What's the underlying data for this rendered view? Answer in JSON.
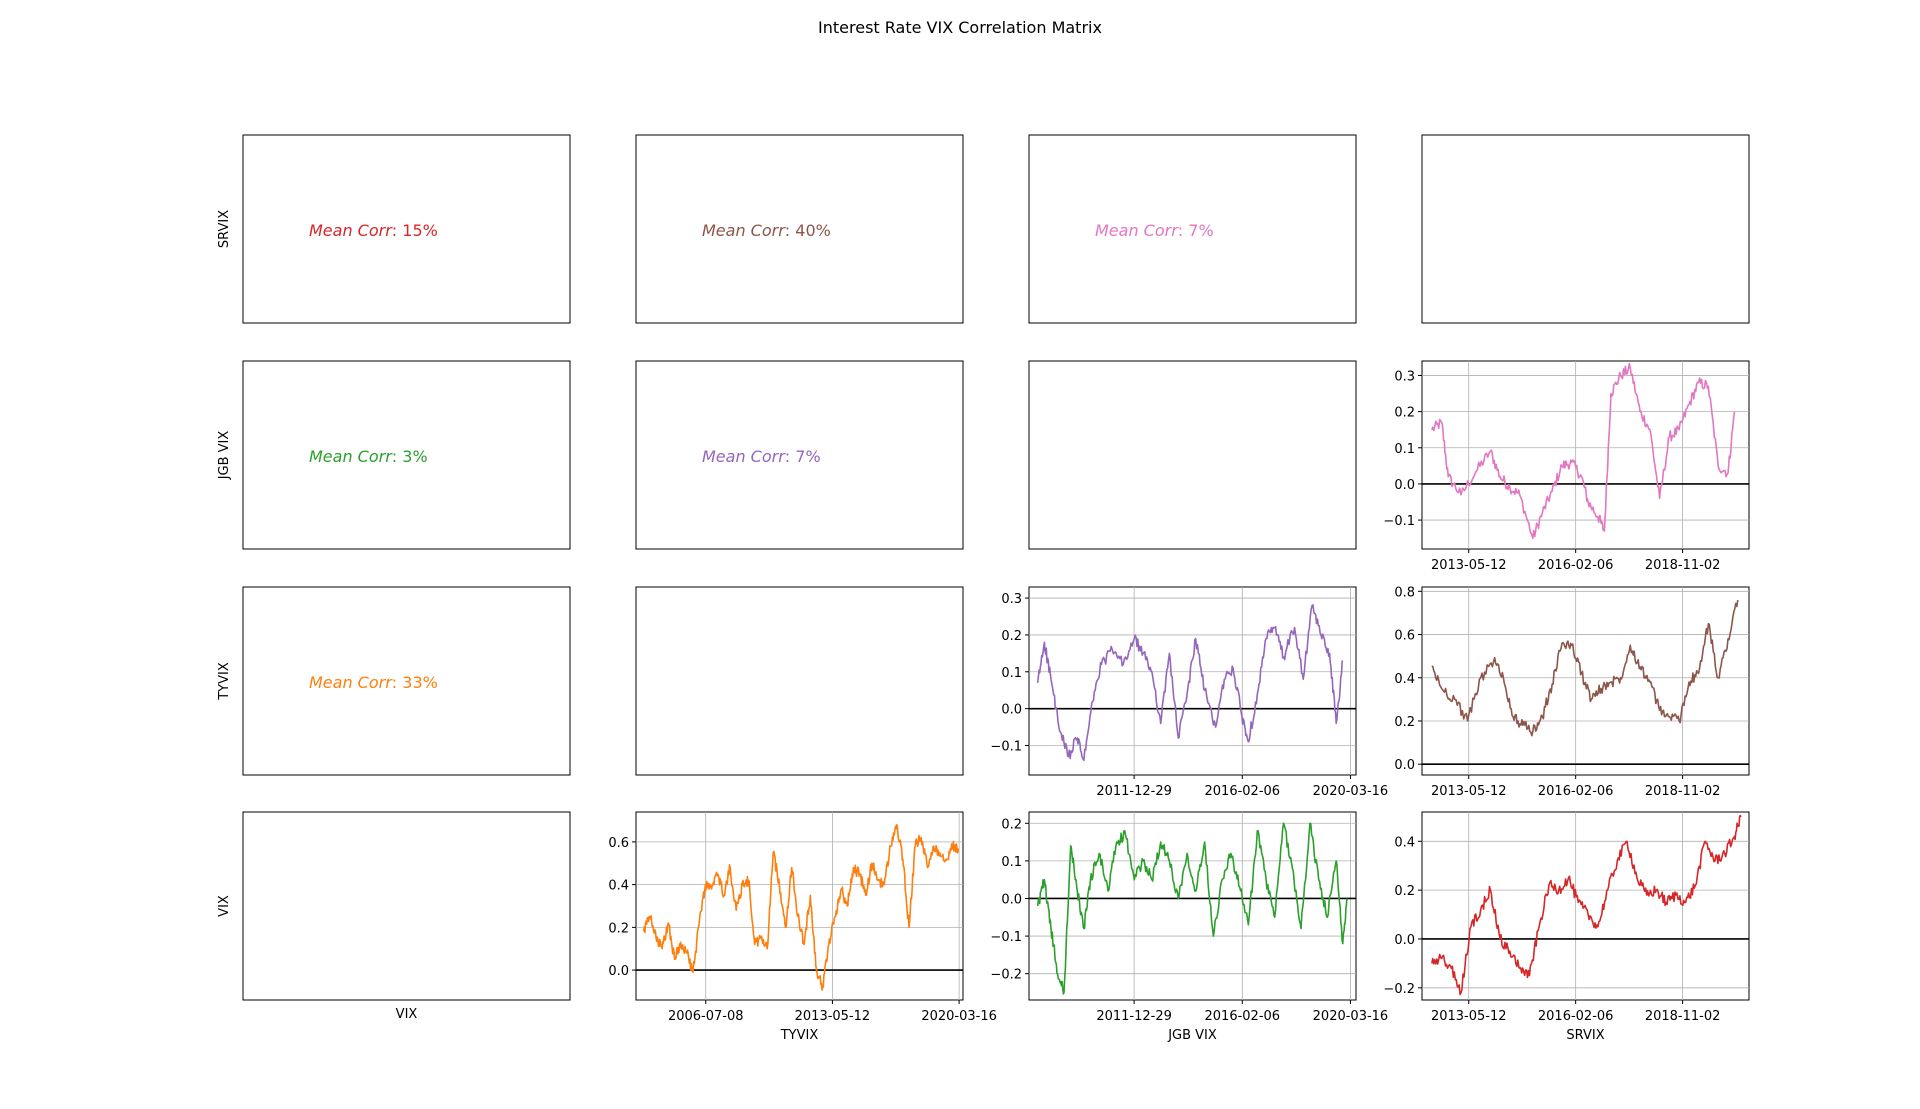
{
  "figure": {
    "title": "Interest Rate VIX Correlation Matrix",
    "row_labels": [
      "SRVIX",
      "JGB VIX",
      "TYVIX",
      "VIX"
    ],
    "col_labels": [
      "VIX",
      "TYVIX",
      "JGB VIX",
      "SRVIX"
    ],
    "mean_corr_prefix": "Mean Corr",
    "colors": {
      "orange": "#ff7f0e",
      "green": "#2ca02c",
      "red": "#d62728",
      "purple": "#9467bd",
      "brown": "#8c564b",
      "pink": "#e377c2",
      "zero_line": "#000000",
      "grid": "#b0b0b0"
    }
  },
  "mean_corr_cells": [
    {
      "row": 0,
      "col": 0,
      "value": "15%",
      "color": "#d62728"
    },
    {
      "row": 0,
      "col": 1,
      "value": "40%",
      "color": "#8c564b"
    },
    {
      "row": 0,
      "col": 2,
      "value": "7%",
      "color": "#e377c2"
    },
    {
      "row": 1,
      "col": 0,
      "value": "3%",
      "color": "#2ca02c"
    },
    {
      "row": 1,
      "col": 1,
      "value": "7%",
      "color": "#9467bd"
    },
    {
      "row": 2,
      "col": 0,
      "value": "33%",
      "color": "#ff7f0e"
    }
  ],
  "chart_data": [
    {
      "type": "line",
      "row": 1,
      "col": 3,
      "color": "#e377c2",
      "xlim": [
        "2012-03-01",
        "2020-07-15"
      ],
      "ylim": [
        -0.18,
        0.34
      ],
      "xticks": [
        "2013-05-12",
        "2016-02-06",
        "2018-11-02"
      ],
      "yticks": [
        -0.1,
        0.0,
        0.1,
        0.2,
        0.3
      ],
      "points": [
        [
          "2012-06-01",
          0.15
        ],
        [
          "2012-09-01",
          0.17
        ],
        [
          "2012-11-01",
          0.02
        ],
        [
          "2013-03-01",
          -0.03
        ],
        [
          "2013-08-01",
          0.04
        ],
        [
          "2013-12-01",
          0.09
        ],
        [
          "2014-03-01",
          0.02
        ],
        [
          "2014-06-01",
          -0.01
        ],
        [
          "2014-09-01",
          -0.03
        ],
        [
          "2015-01-01",
          -0.15
        ],
        [
          "2015-04-01",
          -0.08
        ],
        [
          "2015-07-01",
          -0.02
        ],
        [
          "2015-10-01",
          0.05
        ],
        [
          "2016-01-01",
          0.06
        ],
        [
          "2016-04-01",
          0.02
        ],
        [
          "2016-06-01",
          -0.05
        ],
        [
          "2016-09-01",
          -0.09
        ],
        [
          "2016-11-01",
          -0.13
        ],
        [
          "2017-01-01",
          0.25
        ],
        [
          "2017-04-01",
          0.3
        ],
        [
          "2017-07-01",
          0.32
        ],
        [
          "2017-10-01",
          0.2
        ],
        [
          "2018-01-01",
          0.15
        ],
        [
          "2018-04-01",
          -0.04
        ],
        [
          "2018-07-01",
          0.13
        ],
        [
          "2018-10-01",
          0.15
        ],
        [
          "2019-01-01",
          0.22
        ],
        [
          "2019-04-01",
          0.28
        ],
        [
          "2019-07-01",
          0.27
        ],
        [
          "2019-10-01",
          0.05
        ],
        [
          "2020-01-01",
          0.03
        ],
        [
          "2020-03-01",
          0.2
        ]
      ]
    },
    {
      "type": "line",
      "row": 2,
      "col": 2,
      "color": "#9467bd",
      "xlim": [
        "2008-01-01",
        "2020-06-01"
      ],
      "ylim": [
        -0.18,
        0.33
      ],
      "xticks": [
        "2011-12-29",
        "2016-02-06",
        "2020-03-16"
      ],
      "yticks": [
        -0.1,
        0.0,
        0.1,
        0.2,
        0.3
      ],
      "points": [
        [
          "2008-05-01",
          0.07
        ],
        [
          "2008-08-01",
          0.18
        ],
        [
          "2008-11-01",
          0.08
        ],
        [
          "2009-03-01",
          -0.06
        ],
        [
          "2009-07-01",
          -0.13
        ],
        [
          "2009-11-01",
          -0.08
        ],
        [
          "2010-02-01",
          -0.14
        ],
        [
          "2010-06-01",
          0.02
        ],
        [
          "2010-10-01",
          0.12
        ],
        [
          "2011-03-01",
          0.16
        ],
        [
          "2011-08-01",
          0.12
        ],
        [
          "2012-01-01",
          0.19
        ],
        [
          "2012-05-01",
          0.15
        ],
        [
          "2012-09-01",
          0.1
        ],
        [
          "2013-01-01",
          -0.04
        ],
        [
          "2013-05-01",
          0.15
        ],
        [
          "2013-09-01",
          -0.08
        ],
        [
          "2014-01-01",
          0.04
        ],
        [
          "2014-05-01",
          0.19
        ],
        [
          "2014-09-01",
          0.05
        ],
        [
          "2015-02-01",
          -0.05
        ],
        [
          "2015-06-01",
          0.08
        ],
        [
          "2015-10-01",
          0.11
        ],
        [
          "2016-02-01",
          -0.02
        ],
        [
          "2016-05-01",
          -0.09
        ],
        [
          "2016-09-01",
          0.04
        ],
        [
          "2017-01-01",
          0.19
        ],
        [
          "2017-05-01",
          0.22
        ],
        [
          "2017-09-01",
          0.14
        ],
        [
          "2018-02-01",
          0.22
        ],
        [
          "2018-06-01",
          0.08
        ],
        [
          "2018-10-01",
          0.28
        ],
        [
          "2019-02-01",
          0.2
        ],
        [
          "2019-06-01",
          0.15
        ],
        [
          "2019-09-01",
          -0.04
        ],
        [
          "2019-12-01",
          0.13
        ]
      ]
    },
    {
      "type": "line",
      "row": 2,
      "col": 3,
      "color": "#8c564b",
      "xlim": [
        "2012-03-01",
        "2020-07-15"
      ],
      "ylim": [
        -0.05,
        0.82
      ],
      "xticks": [
        "2013-05-12",
        "2016-02-06",
        "2018-11-02"
      ],
      "yticks": [
        0.0,
        0.2,
        0.4,
        0.6,
        0.8
      ],
      "points": [
        [
          "2012-06-01",
          0.45
        ],
        [
          "2012-09-01",
          0.35
        ],
        [
          "2013-01-01",
          0.3
        ],
        [
          "2013-05-01",
          0.2
        ],
        [
          "2013-09-01",
          0.4
        ],
        [
          "2014-01-01",
          0.48
        ],
        [
          "2014-04-01",
          0.4
        ],
        [
          "2014-07-01",
          0.22
        ],
        [
          "2014-10-01",
          0.18
        ],
        [
          "2015-01-01",
          0.15
        ],
        [
          "2015-04-01",
          0.22
        ],
        [
          "2015-07-01",
          0.37
        ],
        [
          "2015-10-01",
          0.56
        ],
        [
          "2016-01-01",
          0.55
        ],
        [
          "2016-04-01",
          0.42
        ],
        [
          "2016-07-01",
          0.3
        ],
        [
          "2016-10-01",
          0.35
        ],
        [
          "2017-01-01",
          0.38
        ],
        [
          "2017-04-01",
          0.4
        ],
        [
          "2017-07-01",
          0.55
        ],
        [
          "2017-10-01",
          0.45
        ],
        [
          "2018-01-01",
          0.38
        ],
        [
          "2018-04-01",
          0.25
        ],
        [
          "2018-07-01",
          0.22
        ],
        [
          "2018-10-01",
          0.2
        ],
        [
          "2019-01-01",
          0.38
        ],
        [
          "2019-04-01",
          0.42
        ],
        [
          "2019-07-01",
          0.65
        ],
        [
          "2019-10-01",
          0.4
        ],
        [
          "2020-01-01",
          0.58
        ],
        [
          "2020-04-01",
          0.76
        ]
      ]
    },
    {
      "type": "line",
      "row": 3,
      "col": 1,
      "color": "#ff7f0e",
      "xlim": [
        "2002-10-01",
        "2020-06-01"
      ],
      "ylim": [
        -0.14,
        0.74
      ],
      "xticks": [
        "2006-07-08",
        "2013-05-12",
        "2020-03-16"
      ],
      "yticks": [
        0.0,
        0.2,
        0.4,
        0.6
      ],
      "points": [
        [
          "2003-03-01",
          0.18
        ],
        [
          "2003-07-01",
          0.25
        ],
        [
          "2003-11-01",
          0.15
        ],
        [
          "2004-03-01",
          0.1
        ],
        [
          "2004-07-01",
          0.22
        ],
        [
          "2004-11-01",
          0.05
        ],
        [
          "2005-03-01",
          0.13
        ],
        [
          "2005-07-01",
          0.08
        ],
        [
          "2005-11-01",
          -0.01
        ],
        [
          "2006-03-01",
          0.22
        ],
        [
          "2006-07-01",
          0.4
        ],
        [
          "2006-11-01",
          0.38
        ],
        [
          "2007-03-01",
          0.45
        ],
        [
          "2007-07-01",
          0.35
        ],
        [
          "2007-11-01",
          0.48
        ],
        [
          "2008-03-01",
          0.28
        ],
        [
          "2008-07-01",
          0.4
        ],
        [
          "2008-11-01",
          0.42
        ],
        [
          "2009-03-01",
          0.12
        ],
        [
          "2009-07-01",
          0.15
        ],
        [
          "2009-11-01",
          0.1
        ],
        [
          "2010-03-01",
          0.55
        ],
        [
          "2010-07-01",
          0.4
        ],
        [
          "2010-11-01",
          0.2
        ],
        [
          "2011-03-01",
          0.48
        ],
        [
          "2011-07-01",
          0.25
        ],
        [
          "2011-11-01",
          0.12
        ],
        [
          "2012-03-01",
          0.35
        ],
        [
          "2012-07-01",
          0.0
        ],
        [
          "2012-11-01",
          -0.08
        ],
        [
          "2013-03-01",
          0.12
        ],
        [
          "2013-07-01",
          0.25
        ],
        [
          "2013-11-01",
          0.38
        ],
        [
          "2014-03-01",
          0.3
        ],
        [
          "2014-07-01",
          0.48
        ],
        [
          "2014-11-01",
          0.45
        ],
        [
          "2015-03-01",
          0.35
        ],
        [
          "2015-07-01",
          0.5
        ],
        [
          "2015-11-01",
          0.42
        ],
        [
          "2016-03-01",
          0.4
        ],
        [
          "2016-07-01",
          0.58
        ],
        [
          "2016-11-01",
          0.68
        ],
        [
          "2017-03-01",
          0.52
        ],
        [
          "2017-07-01",
          0.2
        ],
        [
          "2017-11-01",
          0.58
        ],
        [
          "2018-03-01",
          0.62
        ],
        [
          "2018-07-01",
          0.48
        ],
        [
          "2018-11-01",
          0.58
        ],
        [
          "2019-03-01",
          0.55
        ],
        [
          "2019-07-01",
          0.52
        ],
        [
          "2019-11-01",
          0.58
        ],
        [
          "2020-03-01",
          0.57
        ]
      ]
    },
    {
      "type": "line",
      "row": 3,
      "col": 2,
      "color": "#2ca02c",
      "xlim": [
        "2008-01-01",
        "2020-06-01"
      ],
      "ylim": [
        -0.27,
        0.23
      ],
      "xticks": [
        "2011-12-29",
        "2016-02-06",
        "2020-03-16"
      ],
      "yticks": [
        -0.2,
        -0.1,
        0.0,
        0.1,
        0.2
      ],
      "points": [
        [
          "2008-05-01",
          -0.02
        ],
        [
          "2008-08-01",
          0.05
        ],
        [
          "2008-11-01",
          -0.08
        ],
        [
          "2009-02-01",
          -0.2
        ],
        [
          "2009-05-01",
          -0.25
        ],
        [
          "2009-08-01",
          0.14
        ],
        [
          "2009-11-01",
          0.02
        ],
        [
          "2010-02-01",
          -0.08
        ],
        [
          "2010-05-01",
          0.05
        ],
        [
          "2010-09-01",
          0.12
        ],
        [
          "2011-01-01",
          0.02
        ],
        [
          "2011-05-01",
          0.15
        ],
        [
          "2011-09-01",
          0.17
        ],
        [
          "2012-01-01",
          0.05
        ],
        [
          "2012-05-01",
          0.1
        ],
        [
          "2012-09-01",
          0.05
        ],
        [
          "2013-01-01",
          0.15
        ],
        [
          "2013-05-01",
          0.1
        ],
        [
          "2013-09-01",
          0.0
        ],
        [
          "2014-01-01",
          0.12
        ],
        [
          "2014-05-01",
          0.02
        ],
        [
          "2014-09-01",
          0.15
        ],
        [
          "2015-01-01",
          -0.1
        ],
        [
          "2015-05-01",
          0.05
        ],
        [
          "2015-09-01",
          0.12
        ],
        [
          "2016-01-01",
          0.03
        ],
        [
          "2016-05-01",
          -0.07
        ],
        [
          "2016-09-01",
          0.18
        ],
        [
          "2017-01-01",
          0.05
        ],
        [
          "2017-05-01",
          -0.05
        ],
        [
          "2017-09-01",
          0.2
        ],
        [
          "2018-01-01",
          0.08
        ],
        [
          "2018-05-01",
          -0.08
        ],
        [
          "2018-09-01",
          0.2
        ],
        [
          "2019-01-01",
          0.05
        ],
        [
          "2019-05-01",
          -0.05
        ],
        [
          "2019-09-01",
          0.1
        ],
        [
          "2019-12-01",
          -0.12
        ],
        [
          "2020-02-01",
          0.0
        ]
      ]
    },
    {
      "type": "line",
      "row": 3,
      "col": 3,
      "color": "#d62728",
      "xlim": [
        "2012-03-01",
        "2020-07-15"
      ],
      "ylim": [
        -0.25,
        0.52
      ],
      "xticks": [
        "2013-05-12",
        "2016-02-06",
        "2018-11-02"
      ],
      "yticks": [
        -0.2,
        0.0,
        0.2,
        0.4
      ],
      "points": [
        [
          "2012-06-01",
          -0.1
        ],
        [
          "2012-09-01",
          -0.08
        ],
        [
          "2012-12-01",
          -0.12
        ],
        [
          "2013-03-01",
          -0.22
        ],
        [
          "2013-06-01",
          0.05
        ],
        [
          "2013-09-01",
          0.12
        ],
        [
          "2013-12-01",
          0.2
        ],
        [
          "2014-03-01",
          0.0
        ],
        [
          "2014-06-01",
          -0.05
        ],
        [
          "2014-09-01",
          -0.12
        ],
        [
          "2014-12-01",
          -0.15
        ],
        [
          "2015-03-01",
          0.05
        ],
        [
          "2015-06-01",
          0.22
        ],
        [
          "2015-09-01",
          0.2
        ],
        [
          "2015-12-01",
          0.25
        ],
        [
          "2016-03-01",
          0.15
        ],
        [
          "2016-06-01",
          0.1
        ],
        [
          "2016-09-01",
          0.05
        ],
        [
          "2016-12-01",
          0.2
        ],
        [
          "2017-03-01",
          0.32
        ],
        [
          "2017-06-01",
          0.4
        ],
        [
          "2017-09-01",
          0.25
        ],
        [
          "2017-12-01",
          0.18
        ],
        [
          "2018-03-01",
          0.2
        ],
        [
          "2018-06-01",
          0.15
        ],
        [
          "2018-09-01",
          0.18
        ],
        [
          "2018-12-01",
          0.15
        ],
        [
          "2019-03-01",
          0.22
        ],
        [
          "2019-06-01",
          0.4
        ],
        [
          "2019-09-01",
          0.32
        ],
        [
          "2019-12-01",
          0.35
        ],
        [
          "2020-03-01",
          0.42
        ],
        [
          "2020-05-01",
          0.5
        ]
      ]
    }
  ]
}
